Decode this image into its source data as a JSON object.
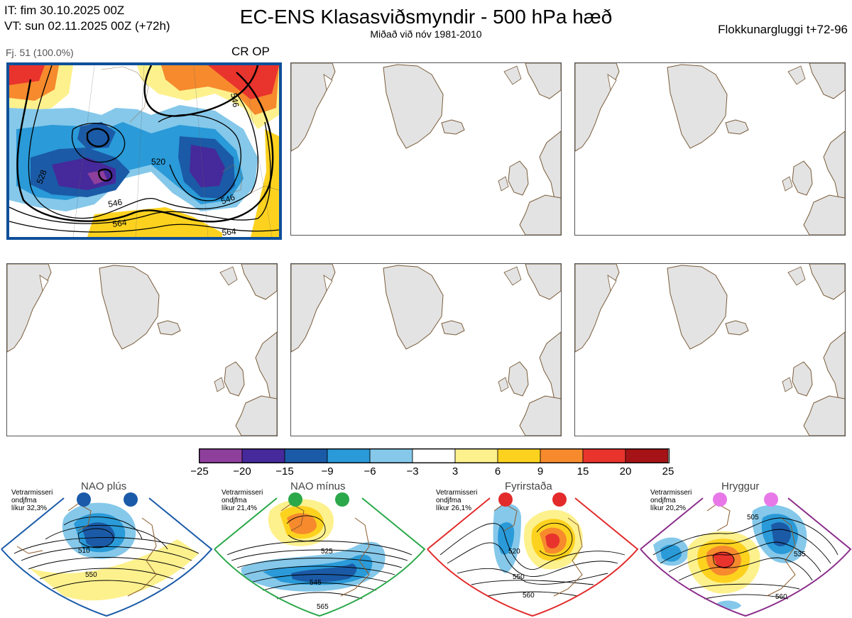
{
  "header": {
    "it_line": "IT: fim 30.10.2025 00Z",
    "vt_line": "VT: sun 02.11.2025 00Z  (+72h)",
    "title": "EC-ENS Klasasviðsmyndir - 500 hPa hæð",
    "subtitle": "Miðað við nóv 1981-2010",
    "window": "Flokkunargluggi t+72-96"
  },
  "panel1": {
    "member_count": "Fj. 51 (100.0%)",
    "tag": "CR OP",
    "contour_labels": [
      "520",
      "528",
      "546",
      "546",
      "564",
      "564",
      "546"
    ]
  },
  "colorbar": {
    "ticks": [
      "−25",
      "−20",
      "−15",
      "−9",
      "−6",
      "−3",
      "3",
      "6",
      "9",
      "15",
      "20",
      "25"
    ],
    "colors": [
      "#8e3f9c",
      "#46299a",
      "#1b5aa6",
      "#2a9ad8",
      "#85c8ea",
      "#ffffff",
      "#fdf18e",
      "#fdd21f",
      "#f68a2d",
      "#e9332d",
      "#a51316"
    ]
  },
  "regimes": [
    {
      "title": "NAO plús",
      "note_1": "Vetrarmisseri",
      "note_2": "ondjfma",
      "note_3": "líkur 32,3%",
      "color": "#1a5aa8",
      "labels": [
        "510",
        "550"
      ]
    },
    {
      "title": "NAO mínus",
      "note_1": "Vetrarmisseri",
      "note_2": "ondjfma",
      "note_3": "líkur 21,4%",
      "color": "#2ba84a",
      "labels": [
        "525",
        "545",
        "565"
      ]
    },
    {
      "title": "Fyrirstaða",
      "note_1": "Vetrarmisseri",
      "note_2": "ondjfma",
      "note_3": "líkur 26,1%",
      "color": "#e32b2b",
      "labels": [
        "520",
        "550",
        "560"
      ]
    },
    {
      "title": "Hryggur",
      "note_1": "Vetrarmisseri",
      "note_2": "ondjfma",
      "note_3": "líkur 20,2%",
      "color": "#8b2d8b",
      "labels": [
        "505",
        "535",
        "560"
      ]
    }
  ]
}
